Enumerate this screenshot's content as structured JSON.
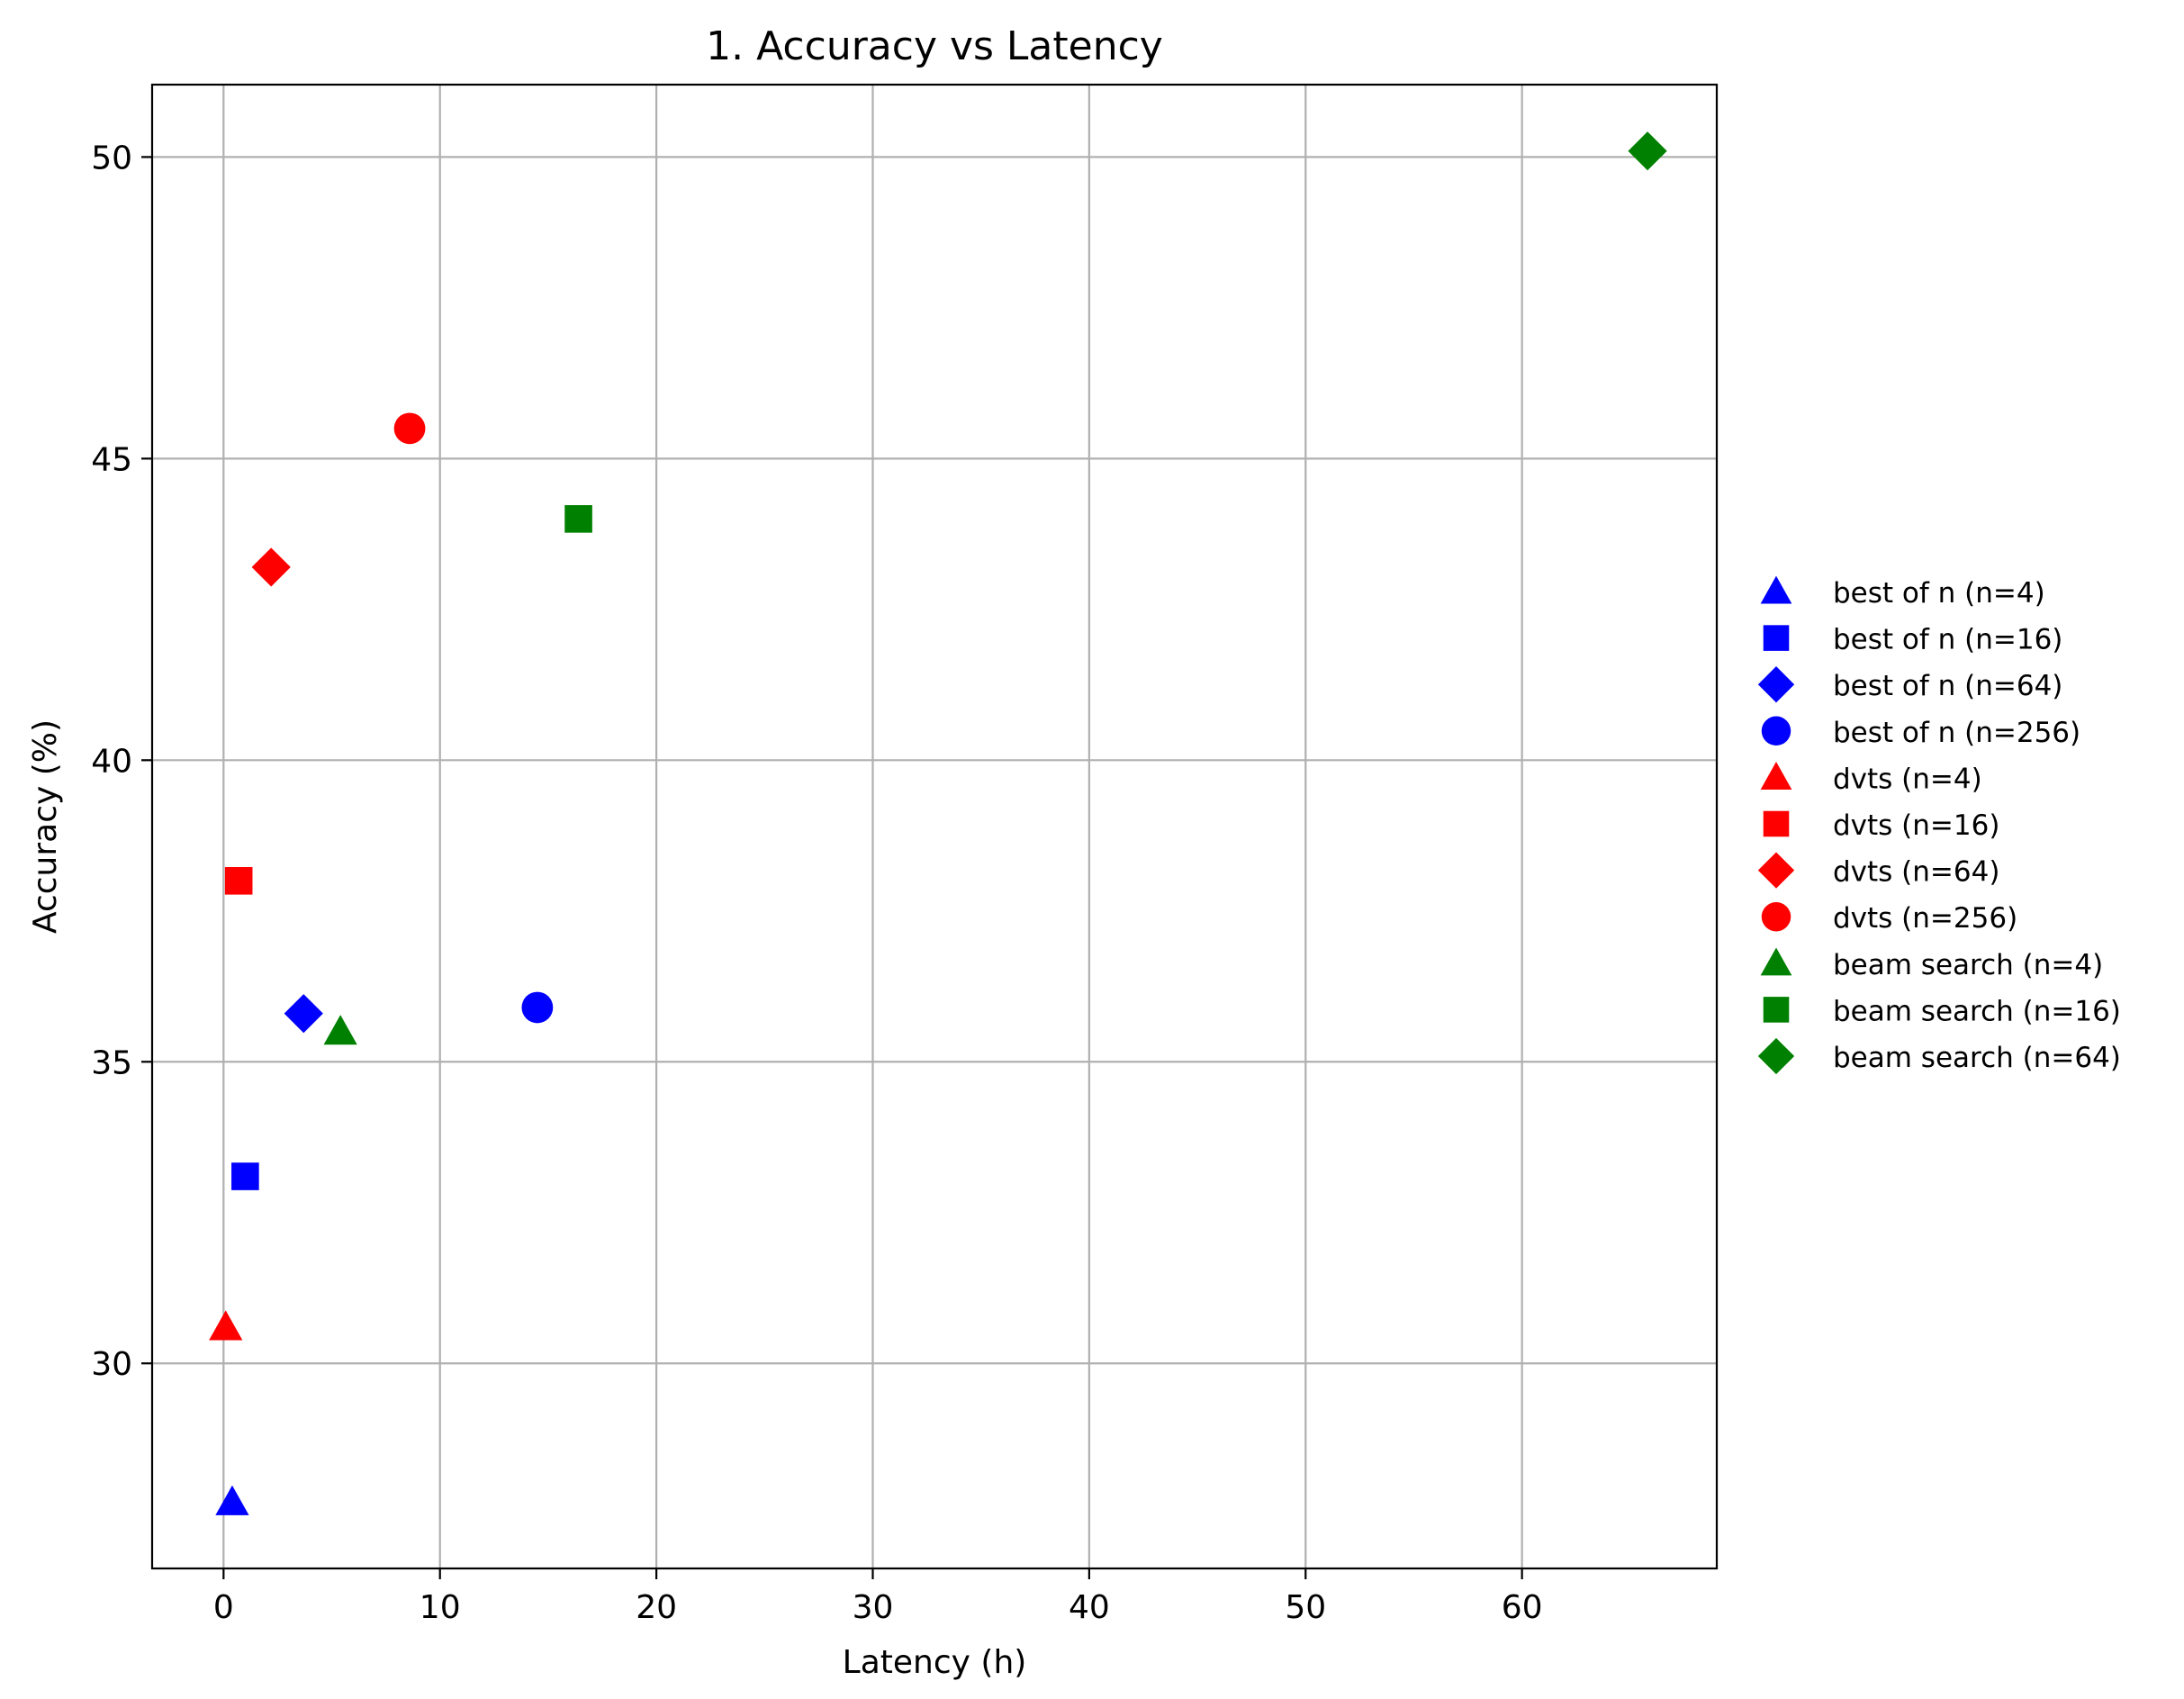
{
  "chart_data": {
    "type": "scatter",
    "title": "1. Accuracy vs Latency",
    "xlabel": "Latency (h)",
    "ylabel": "Accuracy (%)",
    "xlim": [
      -3.3,
      69
    ],
    "ylim": [
      26.6,
      51.2
    ],
    "xticks": [
      0,
      10,
      20,
      30,
      40,
      50,
      60
    ],
    "yticks": [
      30,
      35,
      40,
      45,
      50
    ],
    "grid": true,
    "legend_position": "right",
    "colors": {
      "blue": "#0000ff",
      "red": "#ff0000",
      "green": "#008000"
    },
    "series": [
      {
        "name": "best of n (n=4)",
        "color": "#0000ff",
        "marker": "triangle",
        "x": 0.4,
        "y": 27.7
      },
      {
        "name": "best of n (n=16)",
        "color": "#0000ff",
        "marker": "square",
        "x": 1.0,
        "y": 33.1
      },
      {
        "name": "best of n (n=64)",
        "color": "#0000ff",
        "marker": "diamond",
        "x": 3.7,
        "y": 35.8
      },
      {
        "name": "best of n (n=256)",
        "color": "#0000ff",
        "marker": "circle",
        "x": 14.5,
        "y": 35.9
      },
      {
        "name": "dvts (n=4)",
        "color": "#ff0000",
        "marker": "triangle",
        "x": 0.1,
        "y": 30.6
      },
      {
        "name": "dvts (n=16)",
        "color": "#ff0000",
        "marker": "square",
        "x": 0.7,
        "y": 38.0
      },
      {
        "name": "dvts (n=64)",
        "color": "#ff0000",
        "marker": "diamond",
        "x": 2.2,
        "y": 43.2
      },
      {
        "name": "dvts (n=256)",
        "color": "#ff0000",
        "marker": "circle",
        "x": 8.6,
        "y": 45.5
      },
      {
        "name": "beam search (n=4)",
        "color": "#008000",
        "marker": "triangle",
        "x": 5.4,
        "y": 35.5
      },
      {
        "name": "beam search (n=16)",
        "color": "#008000",
        "marker": "square",
        "x": 16.4,
        "y": 44.0
      },
      {
        "name": "beam search (n=64)",
        "color": "#008000",
        "marker": "diamond",
        "x": 65.8,
        "y": 50.1
      }
    ]
  }
}
